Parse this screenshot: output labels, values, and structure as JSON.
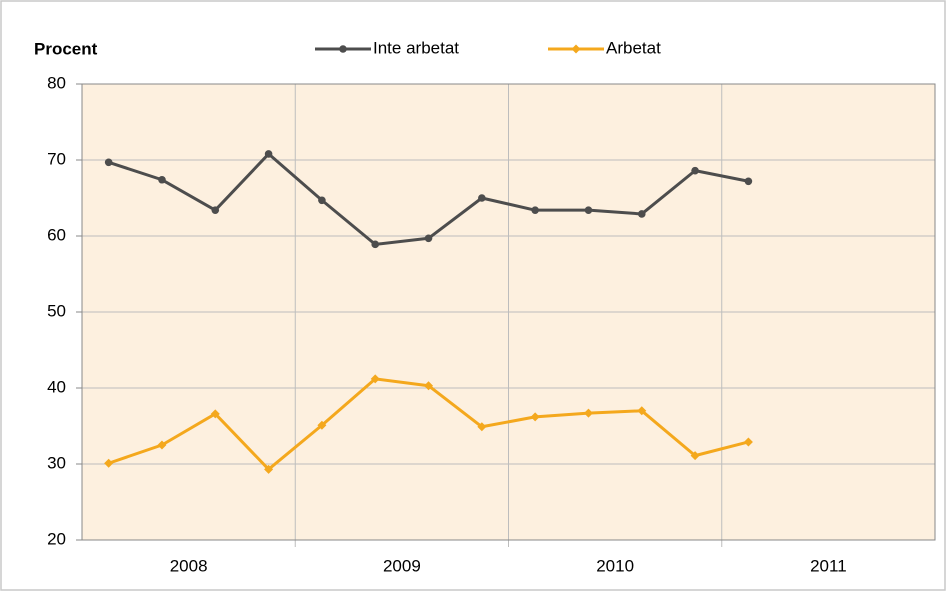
{
  "chart_data": {
    "type": "line",
    "y_label": "Procent",
    "categories": [
      null,
      null,
      null,
      null,
      null,
      null,
      null,
      null,
      null,
      null,
      null,
      null,
      null,
      null,
      null,
      null
    ],
    "groups": [
      "2008",
      "2009",
      "2010",
      "2011"
    ],
    "series": [
      {
        "name": "Inte arbetat",
        "color": "#4d4d4d",
        "marker": "circle",
        "values": [
          69.7,
          67.4,
          63.4,
          70.8,
          64.7,
          58.9,
          59.7,
          65.0,
          63.4,
          63.4,
          62.9,
          68.6,
          67.2,
          null,
          null,
          null
        ]
      },
      {
        "name": "Arbetat",
        "color": "#f4a81d",
        "marker": "diamond",
        "values": [
          30.1,
          32.5,
          36.6,
          29.3,
          35.1,
          41.2,
          40.3,
          34.9,
          36.2,
          36.7,
          37.0,
          31.1,
          32.9,
          null,
          null,
          null
        ]
      }
    ],
    "ylim": [
      20,
      80
    ],
    "yticks": [
      20,
      30,
      40,
      50,
      60,
      70,
      80
    ],
    "grid": true
  }
}
